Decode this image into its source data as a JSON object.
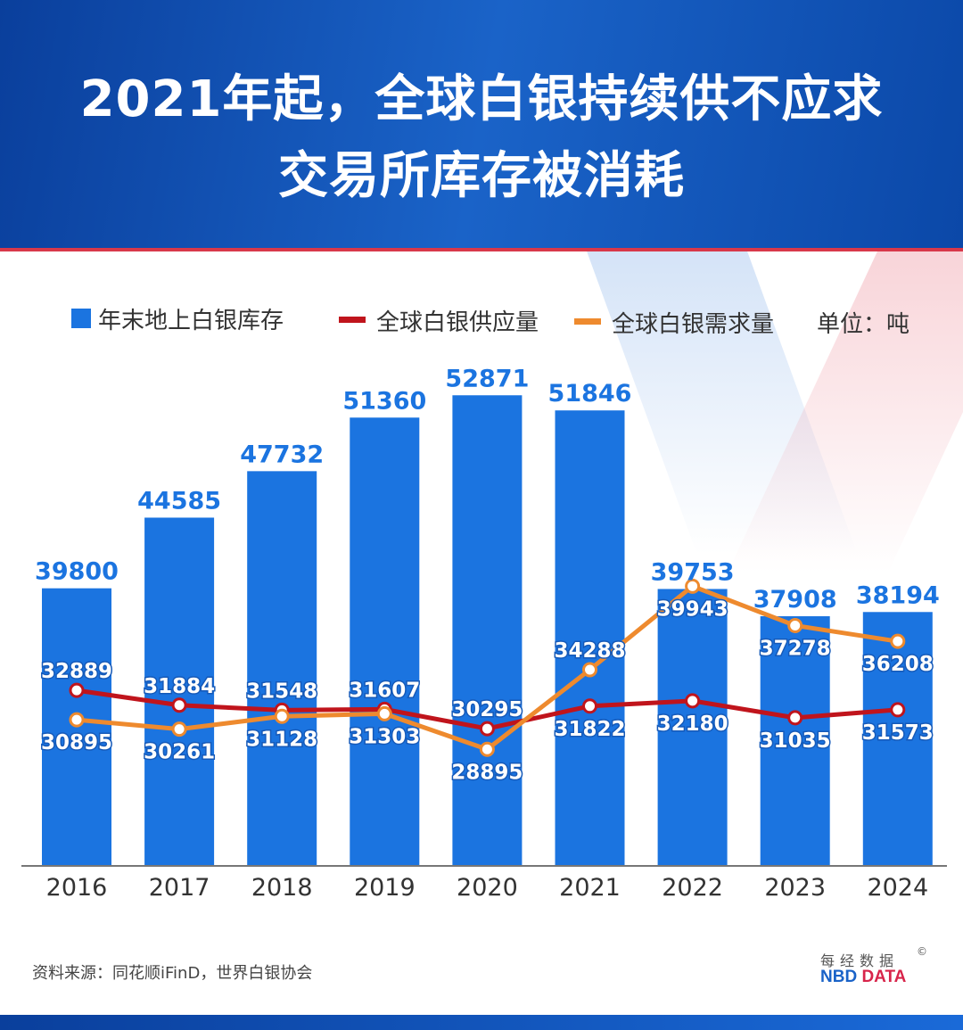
{
  "header": {
    "title_line1": "2021年起，全球白银持续供不应求",
    "title_line2": "交易所库存被消耗"
  },
  "chart_data": {
    "type": "bar+line",
    "categories": [
      "2016",
      "2017",
      "2018",
      "2019",
      "2020",
      "2021",
      "2022",
      "2023",
      "2024"
    ],
    "unit": "单位：吨",
    "ylim": [
      21000,
      55000
    ],
    "grid": false,
    "legend": "top",
    "series": [
      {
        "name": "年末地上白银库存",
        "type": "bar",
        "color": "#1b74e0",
        "values": [
          39800,
          44585,
          47732,
          51360,
          52871,
          51846,
          39753,
          37908,
          38194
        ]
      },
      {
        "name": "全球白银供应量",
        "type": "line",
        "color": "#c0141c",
        "values": [
          32889,
          31884,
          31548,
          31607,
          30295,
          31822,
          32180,
          31035,
          31573
        ]
      },
      {
        "name": "全球白银需求量",
        "type": "line",
        "color": "#ee8a2e",
        "values": [
          30895,
          30261,
          31128,
          31303,
          28895,
          34288,
          39943,
          37278,
          36208
        ]
      }
    ]
  },
  "footer": {
    "source": "资料来源：同花顺iFinD，世界白银协会",
    "logo_cn": "每经数据",
    "logo_en_1": "NBD",
    "logo_en_2": "DATA",
    "logo_mark": "©"
  }
}
